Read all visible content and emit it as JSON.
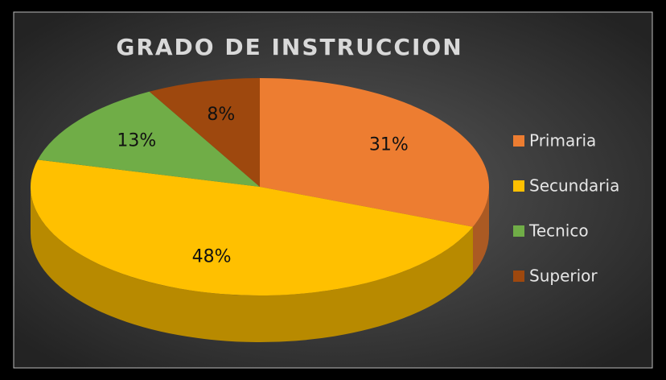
{
  "chart_data": {
    "type": "pie",
    "title": "GRADO DE INSTRUCCION",
    "categories": [
      "Primaria",
      "Secundaria",
      "Tecnico",
      "Superior"
    ],
    "values": [
      31,
      48,
      13,
      8
    ],
    "value_labels": [
      "31%",
      "48%",
      "13%",
      "8%"
    ],
    "colors": [
      "#ed7d31",
      "#ffc000",
      "#70ad47",
      "#9e480e"
    ],
    "legend": "right"
  }
}
